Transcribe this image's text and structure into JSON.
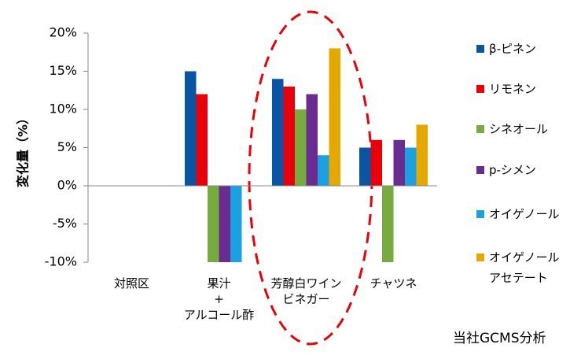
{
  "chart_data": {
    "type": "bar",
    "y_label": "変化量（%）",
    "annotation": "当社GCMS分析",
    "categories": [
      "対照区",
      "果汁\n+\nアルコール酢",
      "芳醇白ワイン\nビネガー",
      "チャツネ"
    ],
    "series": [
      {
        "name": "β-ピネン",
        "color": "#0a55a3",
        "values": [
          0,
          15,
          14,
          5
        ]
      },
      {
        "name": "リモネン",
        "color": "#e8000b",
        "values": [
          0,
          12,
          13,
          6
        ]
      },
      {
        "name": "シネオール",
        "color": "#77ab3f",
        "values": [
          0,
          -10,
          10,
          -10
        ]
      },
      {
        "name": "p-シメン",
        "color": "#6a2c91",
        "values": [
          0,
          -10,
          12,
          6
        ]
      },
      {
        "name": "オイゲノール",
        "color": "#1ba1e2",
        "values": [
          0,
          -10,
          4,
          5
        ]
      },
      {
        "name": "オイゲノールアセテート",
        "color": "#e5a800",
        "values": [
          0,
          0,
          18,
          8
        ]
      }
    ],
    "ylim": [
      -10,
      20
    ],
    "yticks": [
      {
        "value": -10,
        "label": "-10%"
      },
      {
        "value": -5,
        "label": "-5%"
      },
      {
        "value": 0,
        "label": "0%"
      },
      {
        "value": 5,
        "label": "5%"
      },
      {
        "value": 10,
        "label": "10%"
      },
      {
        "value": 15,
        "label": "15%"
      },
      {
        "value": 20,
        "label": "20%"
      }
    ],
    "grid": false
  }
}
